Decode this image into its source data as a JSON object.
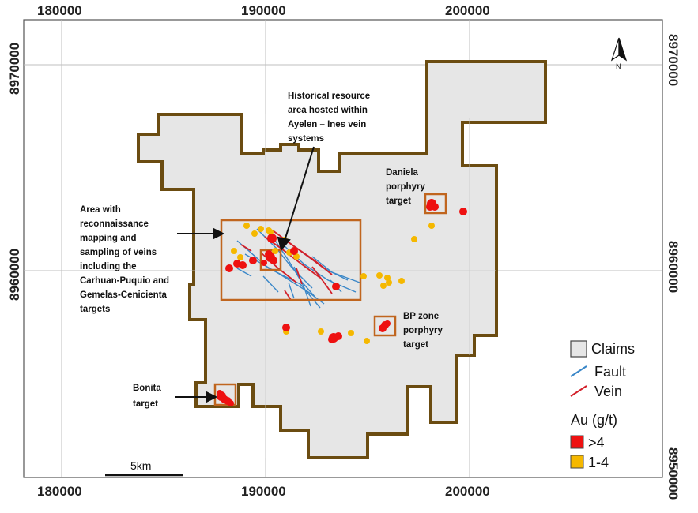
{
  "axes": {
    "x_ticks": [
      "180000",
      "190000",
      "200000"
    ],
    "y_ticks": [
      "8970000",
      "8960000",
      "8950000"
    ]
  },
  "annotations": {
    "historical": [
      "Historical resource",
      "area hosted within",
      "Ayelen – Ines vein",
      "systems"
    ],
    "recon": [
      "Area with",
      "reconnaissance",
      "mapping and",
      "sampling of veins",
      "including the",
      "Carhuan-Puquio and",
      "Gemelas-Cenicienta",
      "targets"
    ],
    "daniela": [
      "Daniela",
      "porphyry",
      "target"
    ],
    "bp": [
      "BP zone",
      "porphyry",
      "target"
    ],
    "bonita": [
      "Bonita",
      "target"
    ]
  },
  "legend": {
    "claims": "Claims",
    "fault": "Fault",
    "vein": "Vein",
    "au_title": "Au (g/t)",
    "high": ">4",
    "mid": "1-4"
  },
  "scale_bar": "5km",
  "north": "N",
  "colors": {
    "claims_fill": "#e6e6e6",
    "claims_outline": "#6b4c11",
    "target_box": "#c0651e",
    "fault": "#3a87c8",
    "vein": "#d3202a",
    "au_high": "#ee1111",
    "au_mid": "#f5b800"
  }
}
